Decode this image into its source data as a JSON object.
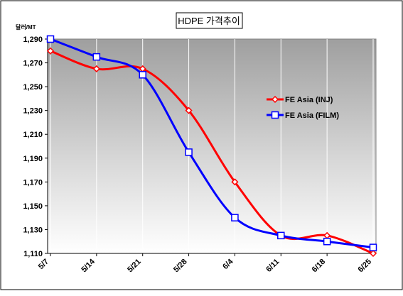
{
  "chart_data": {
    "type": "line",
    "title": "HDPE 가격추이",
    "ylabel": "달러/MT",
    "categories": [
      "5/7",
      "5/14",
      "5/21",
      "5/28",
      "6/4",
      "6/11",
      "6/18",
      "6/25"
    ],
    "ylim": [
      1110,
      1290
    ],
    "yticks": [
      1110,
      1130,
      1150,
      1170,
      1190,
      1210,
      1230,
      1250,
      1270,
      1290
    ],
    "ytick_labels": [
      "1,110",
      "1,130",
      "1,150",
      "1,170",
      "1,190",
      "1,210",
      "1,230",
      "1,250",
      "1,270",
      "1,290"
    ],
    "grid": "vertical",
    "legend_position": "right",
    "plot_background": "gradient-gray",
    "series": [
      {
        "name": "FE Asia (INJ)",
        "color": "#ff0000",
        "marker": "diamond",
        "values": [
          1280,
          1265,
          1265,
          1230,
          1170,
          1125,
          1125,
          1110
        ]
      },
      {
        "name": "FE Asia (FILM)",
        "color": "#0000ff",
        "marker": "square",
        "values": [
          1290,
          1275,
          1260,
          1195,
          1140,
          1125,
          1120,
          1115
        ]
      }
    ]
  }
}
